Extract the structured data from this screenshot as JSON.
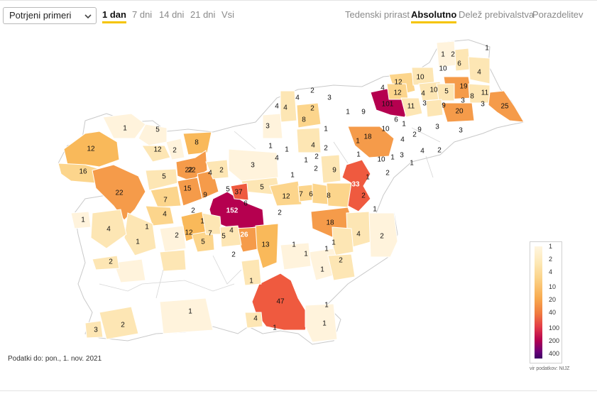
{
  "selector": {
    "value": "Potrjeni primeri"
  },
  "period_tabs": [
    {
      "label": "1 dan",
      "active": true
    },
    {
      "label": "7 dni",
      "active": false
    },
    {
      "label": "14 dni",
      "active": false
    },
    {
      "label": "21 dni",
      "active": false
    },
    {
      "label": "Vsi",
      "active": false
    }
  ],
  "mode_tabs": [
    {
      "label": "Tedenski prirast",
      "active": false
    },
    {
      "label": "Absolutno",
      "active": true
    },
    {
      "label": "Delež prebivalstva",
      "active": false
    },
    {
      "label": "Porazdelitev",
      "active": false
    }
  ],
  "footer": {
    "date": "Podatki do: pon., 1. nov. 2021"
  },
  "legend": {
    "ticks": [
      "1",
      "2",
      "4",
      "10",
      "20",
      "40",
      "100",
      "200",
      "400"
    ],
    "source": "vir podatkov: NIJZ"
  },
  "colors": {
    "c0": "#ffffff",
    "c1": "#fff3dc",
    "c2": "#fde6b4",
    "c4": "#fcd58c",
    "c10": "#f9b95a",
    "c20": "#f59b4a",
    "c40": "#ef5a3f",
    "c100": "#b5004f",
    "active_underline": "#f5c400"
  },
  "map_labels": [
    "1",
    "1",
    "2",
    "6",
    "10",
    "4",
    "10",
    "19",
    "12",
    "4",
    "12",
    "5",
    "10",
    "11",
    "4",
    "4",
    "2",
    "3",
    "101",
    "11",
    "3",
    "9",
    "3",
    "8",
    "25",
    "4",
    "4",
    "2",
    "1",
    "9",
    "20",
    "3",
    "6",
    "1",
    "9",
    "3",
    "3",
    "18",
    "10",
    "2",
    "8",
    "1",
    "3",
    "1",
    "5",
    "1",
    "12",
    "2",
    "8",
    "1",
    "4",
    "2",
    "4",
    "2",
    "12",
    "1",
    "1",
    "4",
    "10",
    "1",
    "3",
    "4",
    "2",
    "16",
    "1",
    "22",
    "4",
    "2",
    "3",
    "2",
    "9",
    "1",
    "1",
    "2",
    "33",
    "5",
    "15",
    "22",
    "1",
    "22",
    "9",
    "5",
    "37",
    "5",
    "12",
    "7",
    "6",
    "8",
    "2",
    "7",
    "4",
    "6",
    "2",
    "1",
    "1",
    "152",
    "2",
    "18",
    "1",
    "12",
    "26",
    "5",
    "4",
    "2",
    "1",
    "4",
    "1",
    "2",
    "7",
    "5",
    "4",
    "13",
    "1",
    "1",
    "1",
    "1",
    "2",
    "2",
    "2",
    "1",
    "47",
    "1",
    "1",
    "2",
    "4",
    "1",
    "3",
    "1",
    "1"
  ]
}
